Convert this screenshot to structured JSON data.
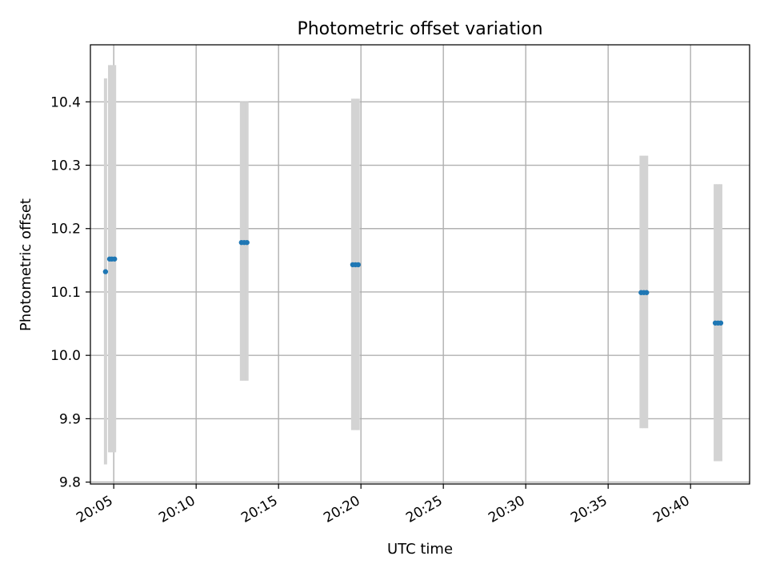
{
  "chart_data": {
    "type": "scatter",
    "title": "Photometric offset variation",
    "xlabel": "UTC time",
    "ylabel": "Photometric offset",
    "xlim": [
      "20:03:35",
      "20:43:35"
    ],
    "ylim": [
      9.797,
      10.49
    ],
    "grid": true,
    "x_ticks": [
      "20:05",
      "20:10",
      "20:15",
      "20:20",
      "20:25",
      "20:30",
      "20:35",
      "20:40"
    ],
    "y_ticks": [
      "9.8",
      "9.9",
      "10.0",
      "10.1",
      "10.2",
      "10.3",
      "10.4"
    ],
    "marker_color": "#1f77b4",
    "errorbar_color": "#d3d3d3",
    "series": [
      {
        "points": [
          {
            "x": "20:04:30",
            "y": 10.132,
            "err_low": 9.828,
            "err_high": 10.437
          },
          {
            "x": "20:04:45",
            "y": 10.152,
            "err_low": 9.847,
            "err_high": 10.458
          },
          {
            "x": "20:04:53",
            "y": 10.152,
            "err_low": 9.847,
            "err_high": 10.458
          },
          {
            "x": "20:05:03",
            "y": 10.152,
            "err_low": 9.847,
            "err_high": 10.458
          },
          {
            "x": "20:12:45",
            "y": 10.178,
            "err_low": 9.96,
            "err_high": 10.4
          },
          {
            "x": "20:12:55",
            "y": 10.178,
            "err_low": 9.96,
            "err_high": 10.4
          },
          {
            "x": "20:13:05",
            "y": 10.178,
            "err_low": 9.96,
            "err_high": 10.4
          },
          {
            "x": "20:19:30",
            "y": 10.143,
            "err_low": 9.882,
            "err_high": 10.405
          },
          {
            "x": "20:19:40",
            "y": 10.143,
            "err_low": 9.882,
            "err_high": 10.405
          },
          {
            "x": "20:19:50",
            "y": 10.143,
            "err_low": 9.882,
            "err_high": 10.405
          },
          {
            "x": "20:37:00",
            "y": 10.099,
            "err_low": 9.885,
            "err_high": 10.315
          },
          {
            "x": "20:37:10",
            "y": 10.099,
            "err_low": 9.885,
            "err_high": 10.315
          },
          {
            "x": "20:37:20",
            "y": 10.099,
            "err_low": 9.885,
            "err_high": 10.315
          },
          {
            "x": "20:41:30",
            "y": 10.051,
            "err_low": 9.833,
            "err_high": 10.27
          },
          {
            "x": "20:41:40",
            "y": 10.051,
            "err_low": 9.833,
            "err_high": 10.27
          },
          {
            "x": "20:41:50",
            "y": 10.051,
            "err_low": 9.833,
            "err_high": 10.27
          }
        ]
      }
    ]
  }
}
